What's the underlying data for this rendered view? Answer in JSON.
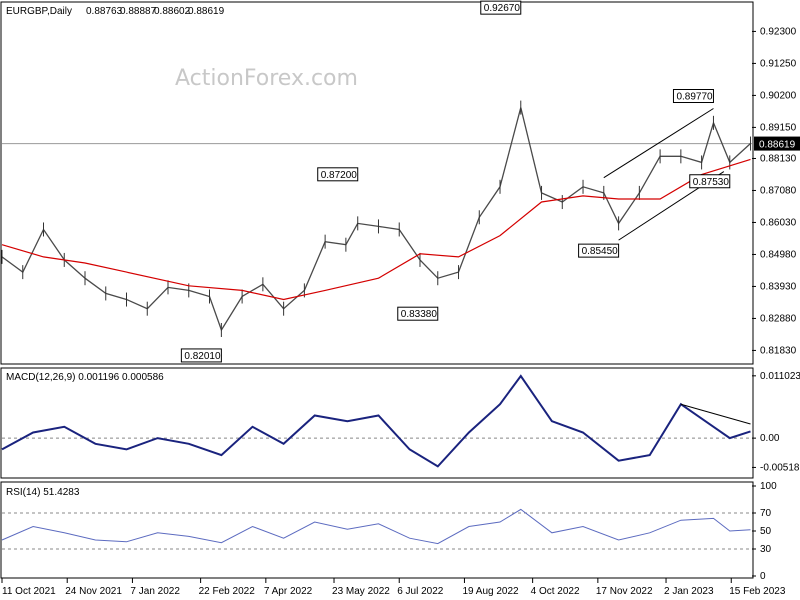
{
  "chart_data": [
    {
      "type": "candlestick",
      "title": "EURGBP,Daily",
      "ohlc": [
        "0.88763",
        "0.88887",
        "0.88602",
        "0.88619"
      ],
      "watermark": "ActionForex.com",
      "ylim": [
        0.8145,
        0.932
      ],
      "y_ticks": [
        "0.92300",
        "0.91250",
        "0.90200",
        "0.89150",
        "0.88130",
        "0.87080",
        "0.86030",
        "0.84980",
        "0.83930",
        "0.82880",
        "0.81830"
      ],
      "current_price": "0.88619",
      "annotations": [
        {
          "label": "0.82010",
          "date": "2022-03-08",
          "value": 0.8201
        },
        {
          "label": "0.87200",
          "date": "2022-06-08",
          "value": 0.872
        },
        {
          "label": "0.83380",
          "date": "2022-08-01",
          "value": 0.8338
        },
        {
          "label": "0.92670",
          "date": "2022-09-26",
          "value": 0.9267
        },
        {
          "label": "0.85450",
          "date": "2022-12-01",
          "value": 0.8545
        },
        {
          "label": "0.89770",
          "date": "2023-02-03",
          "value": 0.8977
        },
        {
          "label": "0.87530",
          "date": "2023-02-14",
          "value": 0.8753
        }
      ],
      "close_series": [
        [
          "2021-10-11",
          0.849
        ],
        [
          "2021-10-25",
          0.844
        ],
        [
          "2021-11-08",
          0.858
        ],
        [
          "2021-11-22",
          0.848
        ],
        [
          "2021-12-06",
          0.842
        ],
        [
          "2021-12-20",
          0.837
        ],
        [
          "2022-01-03",
          0.835
        ],
        [
          "2022-01-17",
          0.832
        ],
        [
          "2022-01-31",
          0.839
        ],
        [
          "2022-02-14",
          0.838
        ],
        [
          "2022-02-28",
          0.836
        ],
        [
          "2022-03-08",
          0.825
        ],
        [
          "2022-03-22",
          0.836
        ],
        [
          "2022-04-05",
          0.84
        ],
        [
          "2022-04-19",
          0.832
        ],
        [
          "2022-05-03",
          0.838
        ],
        [
          "2022-05-17",
          0.854
        ],
        [
          "2022-05-31",
          0.853
        ],
        [
          "2022-06-08",
          0.86
        ],
        [
          "2022-06-22",
          0.859
        ],
        [
          "2022-07-06",
          0.858
        ],
        [
          "2022-07-20",
          0.848
        ],
        [
          "2022-08-01",
          0.842
        ],
        [
          "2022-08-15",
          0.844
        ],
        [
          "2022-08-29",
          0.862
        ],
        [
          "2022-09-12",
          0.872
        ],
        [
          "2022-09-26",
          0.898
        ],
        [
          "2022-10-10",
          0.87
        ],
        [
          "2022-10-24",
          0.867
        ],
        [
          "2022-11-07",
          0.872
        ],
        [
          "2022-11-21",
          0.87
        ],
        [
          "2022-12-01",
          0.86
        ],
        [
          "2022-12-15",
          0.87
        ],
        [
          "2022-12-29",
          0.882
        ],
        [
          "2023-01-12",
          0.882
        ],
        [
          "2023-01-26",
          0.88
        ],
        [
          "2023-02-03",
          0.893
        ],
        [
          "2023-02-14",
          0.88
        ],
        [
          "2023-02-28",
          0.8862
        ]
      ],
      "moving_average": [
        [
          "2021-10-11",
          0.853
        ],
        [
          "2021-11-08",
          0.849
        ],
        [
          "2021-12-06",
          0.847
        ],
        [
          "2022-01-03",
          0.844
        ],
        [
          "2022-02-14",
          0.8395
        ],
        [
          "2022-03-22",
          0.838
        ],
        [
          "2022-04-19",
          0.835
        ],
        [
          "2022-05-17",
          0.838
        ],
        [
          "2022-06-22",
          0.842
        ],
        [
          "2022-07-20",
          0.85
        ],
        [
          "2022-08-15",
          0.849
        ],
        [
          "2022-09-12",
          0.856
        ],
        [
          "2022-10-10",
          0.867
        ],
        [
          "2022-11-07",
          0.869
        ],
        [
          "2022-12-01",
          0.868
        ],
        [
          "2022-12-29",
          0.868
        ],
        [
          "2023-01-26",
          0.876
        ],
        [
          "2023-02-28",
          0.881
        ]
      ],
      "x_ticks": [
        "11 Oct 2021",
        "24 Nov 2021",
        "7 Jan 2022",
        "22 Feb 2022",
        "7 Apr 2022",
        "23 May 2022",
        "6 Jul 2022",
        "19 Aug 2022",
        "4 Oct 2022",
        "17 Nov 2022",
        "2 Jan 2023",
        "15 Feb 2023"
      ]
    },
    {
      "type": "line",
      "title": "MACD(12,26,9) 0.001196 0.000586",
      "ylim": [
        -0.0067,
        0.0117
      ],
      "y_ticks": [
        "0.011023",
        "0.00",
        "-0.005182"
      ],
      "macd": [
        [
          "2021-10-11",
          -0.002
        ],
        [
          "2021-11-01",
          0.001
        ],
        [
          "2021-11-22",
          0.002
        ],
        [
          "2021-12-13",
          -0.001
        ],
        [
          "2022-01-03",
          -0.002
        ],
        [
          "2022-01-24",
          0.0
        ],
        [
          "2022-02-14",
          -0.001
        ],
        [
          "2022-03-08",
          -0.003
        ],
        [
          "2022-03-29",
          0.002
        ],
        [
          "2022-04-19",
          -0.001
        ],
        [
          "2022-05-10",
          0.004
        ],
        [
          "2022-06-01",
          0.003
        ],
        [
          "2022-06-22",
          0.004
        ],
        [
          "2022-07-13",
          -0.002
        ],
        [
          "2022-08-01",
          -0.005
        ],
        [
          "2022-08-22",
          0.001
        ],
        [
          "2022-09-12",
          0.006
        ],
        [
          "2022-09-26",
          0.011
        ],
        [
          "2022-10-17",
          0.003
        ],
        [
          "2022-11-07",
          0.001
        ],
        [
          "2022-12-01",
          -0.004
        ],
        [
          "2022-12-22",
          -0.003
        ],
        [
          "2023-01-12",
          0.006
        ],
        [
          "2023-02-03",
          0.002
        ],
        [
          "2023-02-14",
          0.0
        ],
        [
          "2023-02-28",
          0.001196
        ]
      ],
      "signal_last": 0.000586
    },
    {
      "type": "line",
      "title": "RSI(14) 51.4283",
      "ylim": [
        0,
        100
      ],
      "y_ticks": [
        "100",
        "70",
        "50",
        "30",
        "0"
      ],
      "rsi": [
        [
          "2021-10-11",
          40
        ],
        [
          "2021-11-01",
          55
        ],
        [
          "2021-11-22",
          48
        ],
        [
          "2021-12-13",
          40
        ],
        [
          "2022-01-03",
          38
        ],
        [
          "2022-01-24",
          48
        ],
        [
          "2022-02-14",
          44
        ],
        [
          "2022-03-08",
          37
        ],
        [
          "2022-03-29",
          55
        ],
        [
          "2022-04-19",
          42
        ],
        [
          "2022-05-10",
          60
        ],
        [
          "2022-06-01",
          52
        ],
        [
          "2022-06-22",
          58
        ],
        [
          "2022-07-13",
          42
        ],
        [
          "2022-08-01",
          36
        ],
        [
          "2022-08-22",
          55
        ],
        [
          "2022-09-12",
          60
        ],
        [
          "2022-09-26",
          74
        ],
        [
          "2022-10-17",
          48
        ],
        [
          "2022-11-07",
          55
        ],
        [
          "2022-12-01",
          40
        ],
        [
          "2022-12-22",
          48
        ],
        [
          "2023-01-12",
          62
        ],
        [
          "2023-02-03",
          64
        ],
        [
          "2023-02-14",
          50
        ],
        [
          "2023-02-28",
          51.4283
        ]
      ]
    }
  ]
}
